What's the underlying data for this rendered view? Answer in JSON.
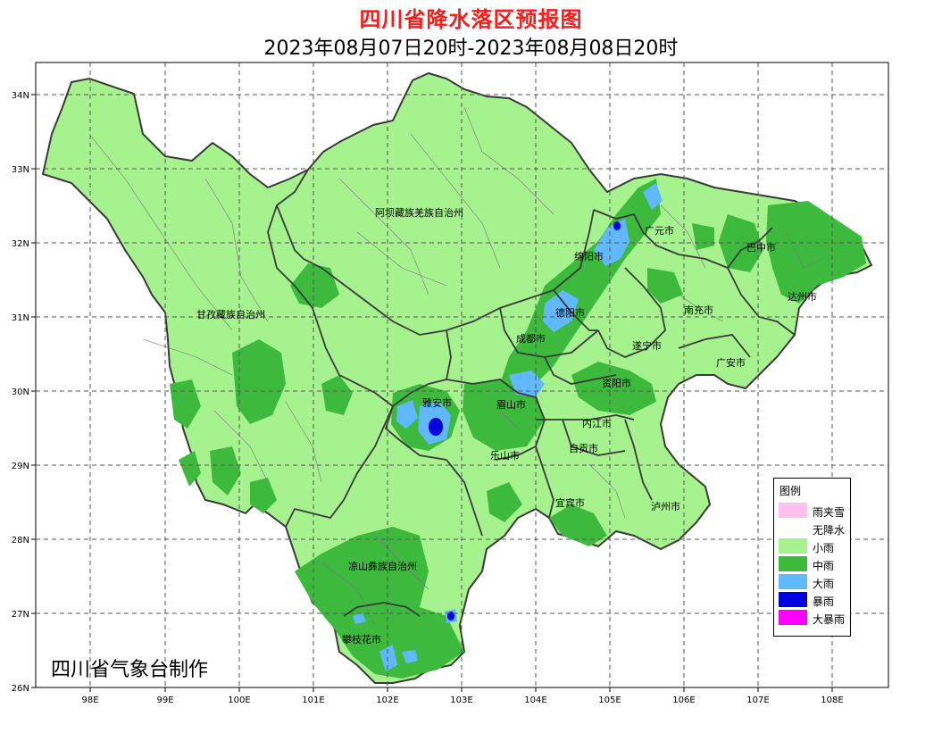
{
  "title": "四川省降水落区预报图",
  "subtitle": "2023年08月07日20时-2023年08月08日20时",
  "credit": "四川省气象台制作",
  "axes": {
    "lon_ticks": [
      "98E",
      "99E",
      "100E",
      "101E",
      "102E",
      "103E",
      "104E",
      "105E",
      "106E",
      "107E",
      "108E"
    ],
    "lat_ticks": [
      "34N",
      "33N",
      "32N",
      "31N",
      "30N",
      "29N",
      "28N",
      "27N",
      "26N"
    ]
  },
  "regions": [
    {
      "name": "阿坝藏族羌族自治州"
    },
    {
      "name": "甘孜藏族自治州"
    },
    {
      "name": "凉山彝族自治州"
    },
    {
      "name": "广元市"
    },
    {
      "name": "绵阳市"
    },
    {
      "name": "巴中市"
    },
    {
      "name": "达州市"
    },
    {
      "name": "德阳市"
    },
    {
      "name": "南充市"
    },
    {
      "name": "成都市"
    },
    {
      "name": "遂宁市"
    },
    {
      "name": "广安市"
    },
    {
      "name": "资阳市"
    },
    {
      "name": "雅安市"
    },
    {
      "name": "眉山市"
    },
    {
      "name": "内江市"
    },
    {
      "name": "自贡市"
    },
    {
      "name": "乐山市"
    },
    {
      "name": "宜宾市"
    },
    {
      "name": "泸州市"
    },
    {
      "name": "攀枝花市"
    }
  ],
  "legend": {
    "title": "图例",
    "items": [
      {
        "label": "雨夹雪",
        "color": "#ffc0ee"
      },
      {
        "label": "无降水",
        "color": "#ffffff"
      },
      {
        "label": "小雨",
        "color": "#a6f28f"
      },
      {
        "label": "中雨",
        "color": "#3dba3d"
      },
      {
        "label": "大雨",
        "color": "#61b8ff"
      },
      {
        "label": "暴雨",
        "color": "#0000e1"
      },
      {
        "label": "大暴雨",
        "color": "#fa00fa"
      }
    ]
  }
}
